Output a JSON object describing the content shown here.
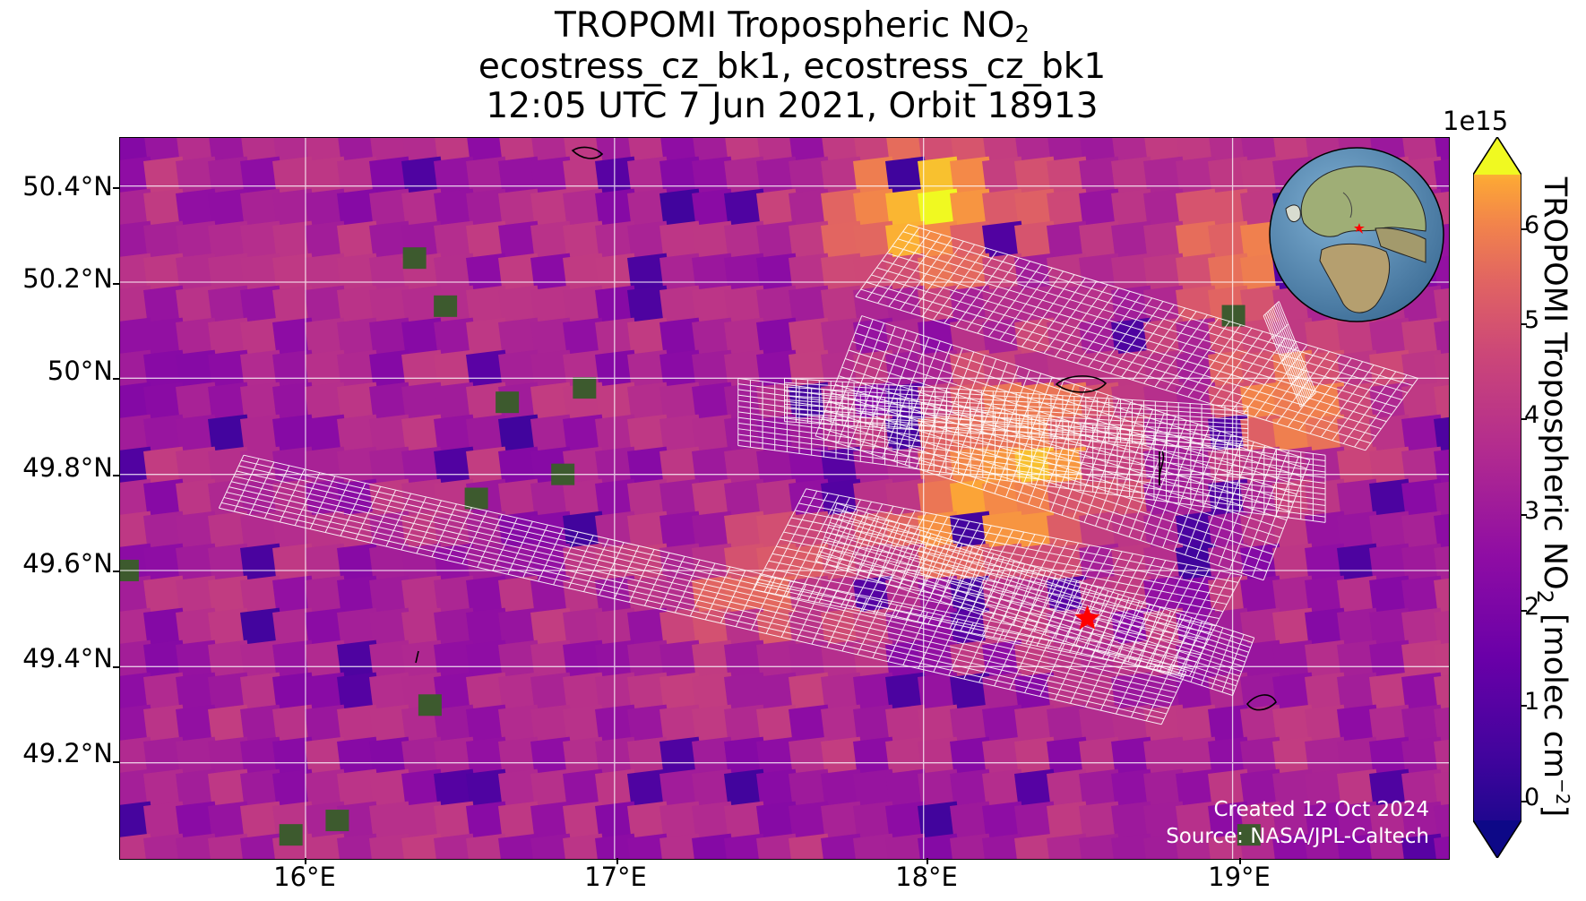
{
  "title": {
    "line1_main": "TROPOMI Tropospheric NO",
    "line1_sub": "2",
    "line2": "ecostress_cz_bk1, ecostress_cz_bk1",
    "line3": "12:05 UTC 7 Jun 2021, Orbit 18913"
  },
  "map": {
    "lon_range": [
      15.4,
      19.7
    ],
    "lat_range": [
      49.0,
      50.5
    ],
    "lat_ticks": [
      "50.4°N",
      "50.2°N",
      "50°N",
      "49.8°N",
      "49.6°N",
      "49.4°N",
      "49.2°N"
    ],
    "lon_ticks": [
      "16°E",
      "17°E",
      "18°E",
      "19°E"
    ],
    "marker": {
      "symbol": "red-star",
      "lon": 18.53,
      "lat": 49.5,
      "color": "#ff0000"
    },
    "gridlines": true,
    "base_color": "#6a12a0"
  },
  "credits": {
    "created": "Created 12 Oct 2024",
    "source": "Source: NASA/JPL-Caltech"
  },
  "colorbar": {
    "colormap": "plasma",
    "range": [
      -0.6,
      6.7
    ],
    "exponent_label": "1e15",
    "ticks": [
      "0",
      "1",
      "2",
      "3",
      "4",
      "5",
      "6"
    ],
    "label_main": "TROPOMI Tropospheric NO",
    "label_sub": "2",
    "label_unit": " [molec cm",
    "label_sup": "−2",
    "label_close": "]",
    "extend": "both"
  },
  "inset_globe": {
    "marker": "red-star",
    "region": "Europe/Africa"
  }
}
